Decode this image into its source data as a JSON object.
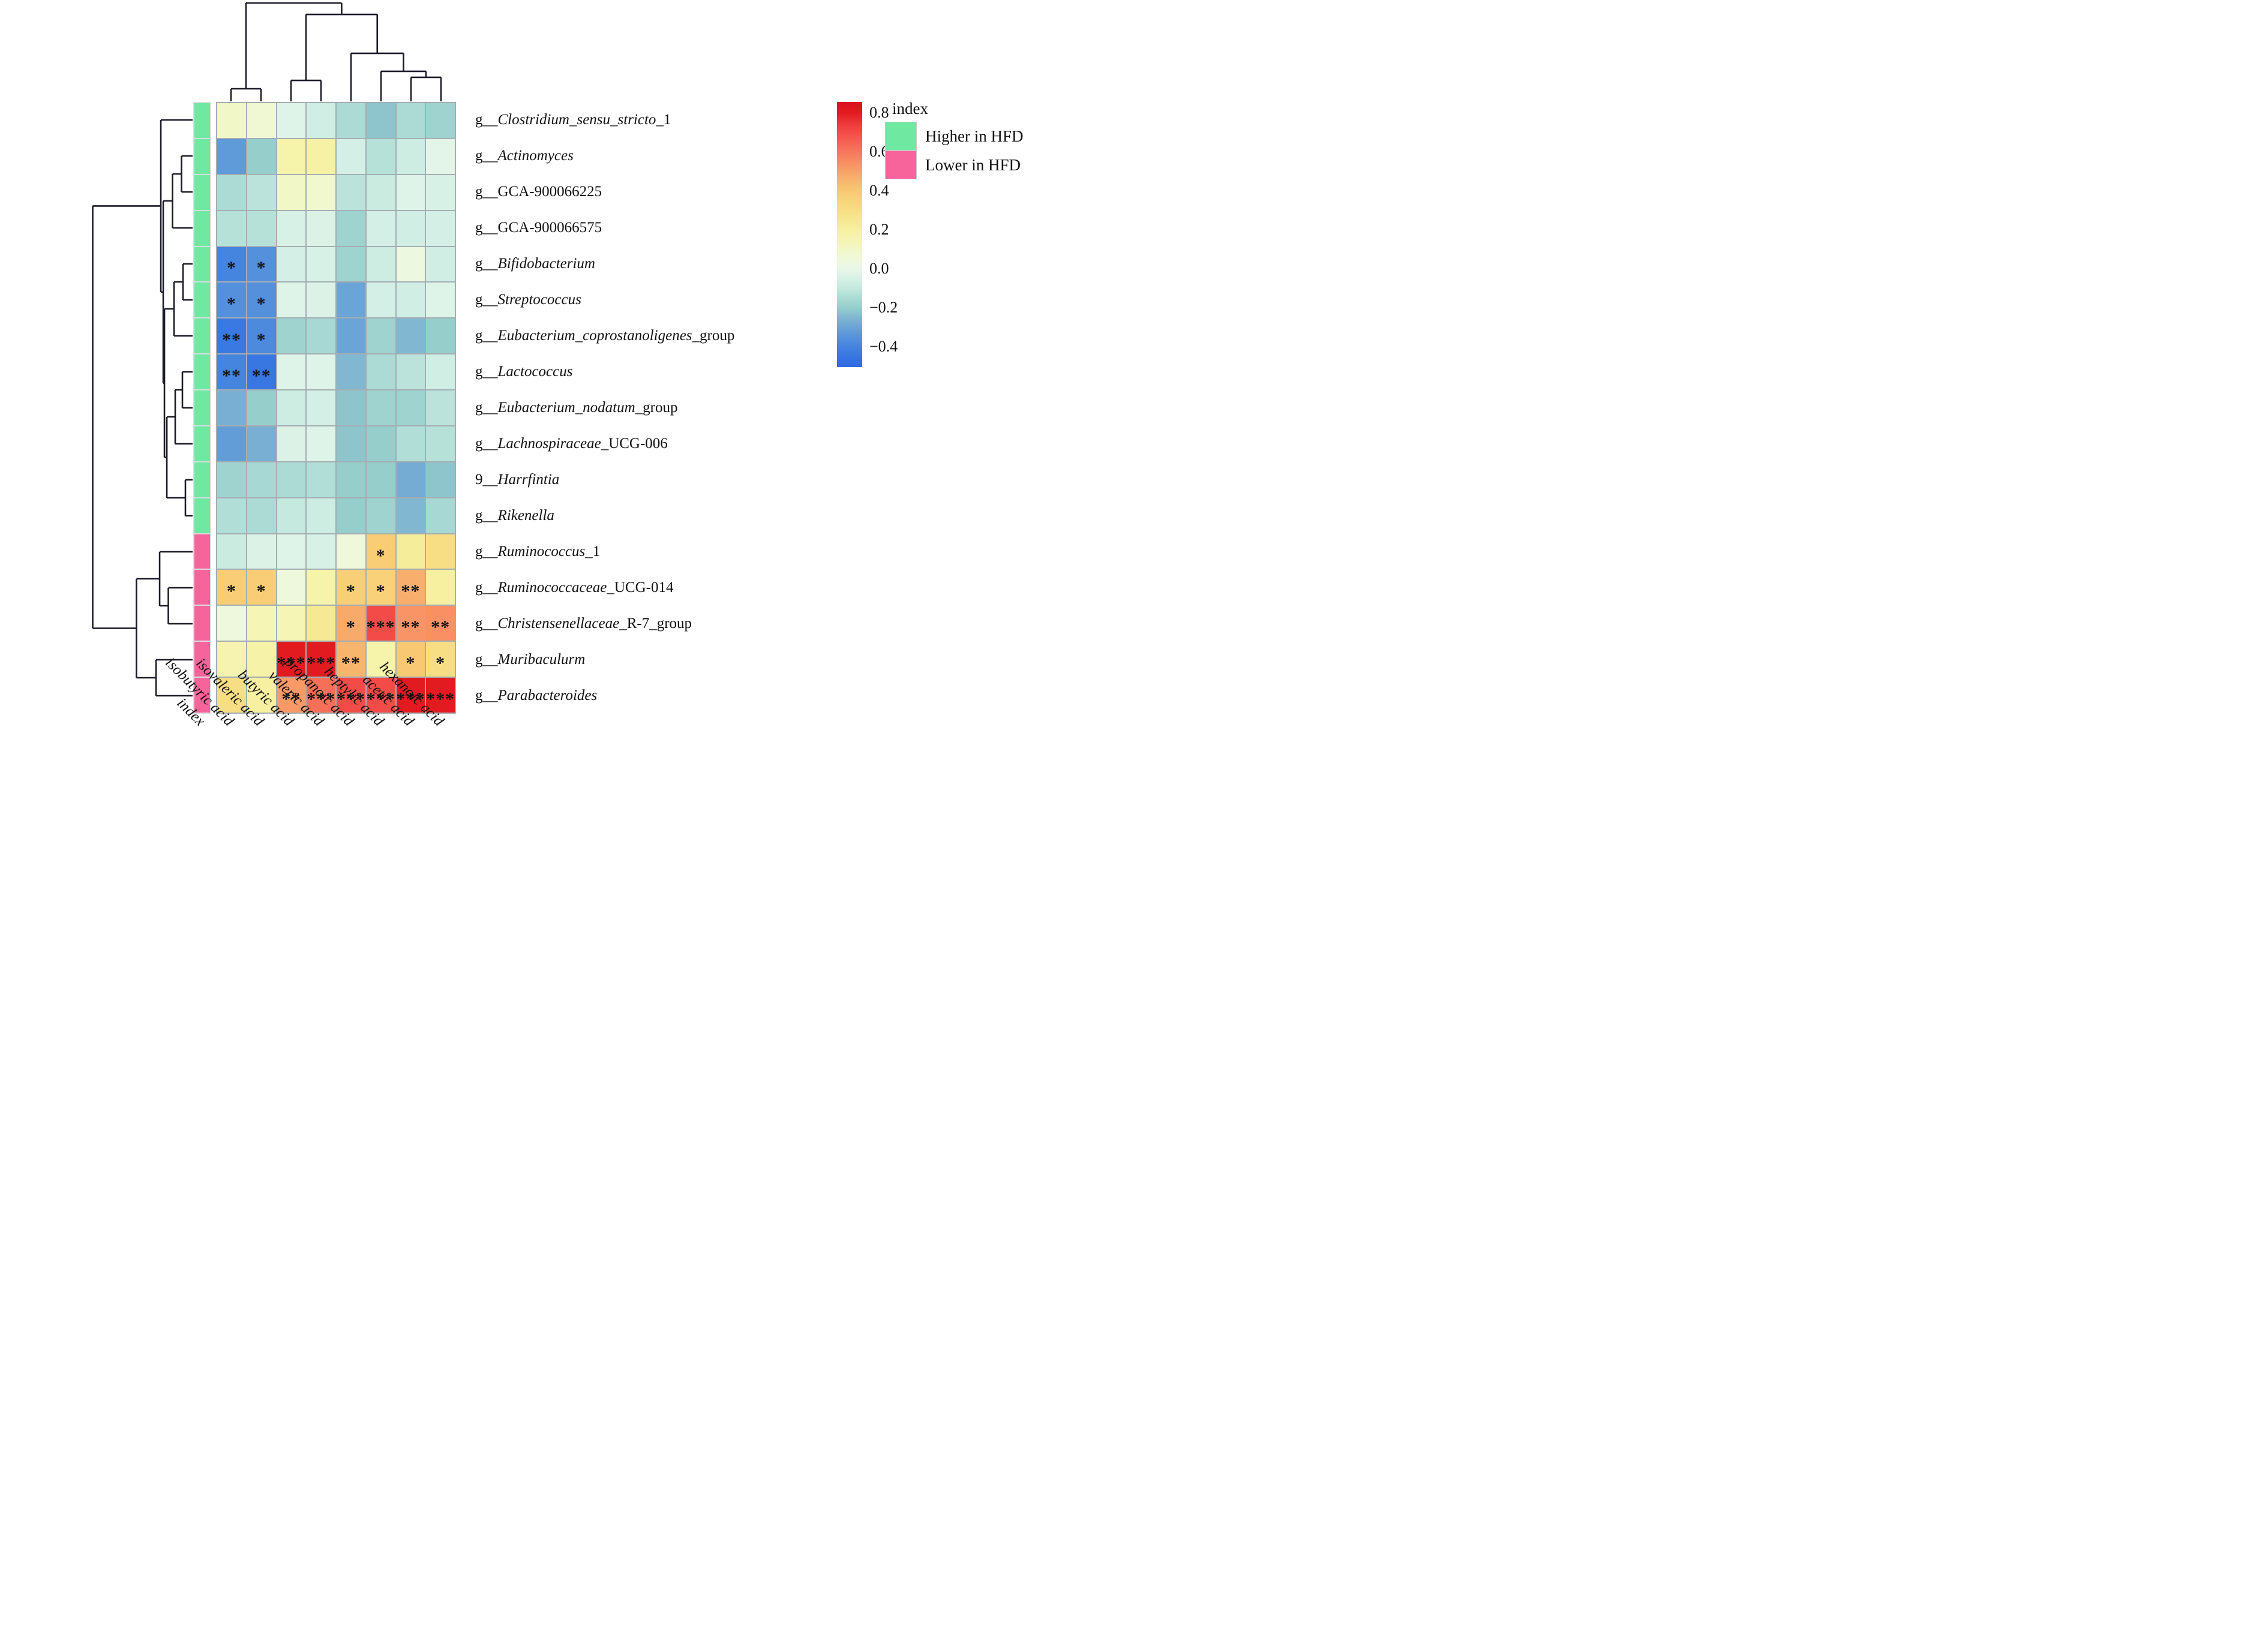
{
  "chart_data": {
    "type": "heatmap",
    "title": "",
    "index_column_label": "index",
    "columns": [
      "isobutyric acid",
      "isovaleric acid",
      "butyric acid",
      "valeric acid",
      "propanoic acid",
      "heptylic acid",
      "acetic acid",
      "hexanoic acid"
    ],
    "rows": [
      {
        "pre": "g__",
        "it": "Clostridium_sensu_stricto",
        "post": "_1",
        "index": "higher"
      },
      {
        "pre": "g__",
        "it": "Actinomyces",
        "post": "",
        "index": "higher"
      },
      {
        "pre": "g__GCA-900066225",
        "it": "",
        "post": "",
        "index": "higher"
      },
      {
        "pre": "g__GCA-900066575",
        "it": "",
        "post": "",
        "index": "higher"
      },
      {
        "pre": "g__",
        "it": "Bifidobacterium",
        "post": "",
        "index": "higher"
      },
      {
        "pre": "g__",
        "it": "Streptococcus",
        "post": "",
        "index": "higher"
      },
      {
        "pre": "g__",
        "it": "Eubacterium_coprostanoligenes",
        "post": "_group",
        "index": "higher"
      },
      {
        "pre": "g__",
        "it": "Lactococcus",
        "post": "",
        "index": "higher"
      },
      {
        "pre": "g__",
        "it": "Eubacterium_nodatum",
        "post": "_group",
        "index": "higher"
      },
      {
        "pre": "g__",
        "it": "Lachnospiraceae",
        "post": "_UCG-006",
        "index": "higher"
      },
      {
        "pre": "9__",
        "it": "Harrfintia",
        "post": "",
        "index": "higher"
      },
      {
        "pre": "g__",
        "it": "Rikenella",
        "post": "",
        "index": "higher"
      },
      {
        "pre": "g__",
        "it": "Ruminococcus",
        "post": "_1",
        "index": "lower"
      },
      {
        "pre": "g__",
        "it": "Ruminococcaceae",
        "post": "_UCG-014",
        "index": "lower"
      },
      {
        "pre": "g__",
        "it": "Christensenellaceae",
        "post": "_R-7_group",
        "index": "lower"
      },
      {
        "pre": "g__",
        "it": "Muribaculurm",
        "post": "",
        "index": "lower"
      },
      {
        "pre": "g__",
        "it": "Parabacteroides",
        "post": "",
        "index": "lower"
      }
    ],
    "values": [
      [
        0.1,
        0.07,
        -0.03,
        -0.07,
        -0.15,
        -0.22,
        -0.15,
        -0.18
      ],
      [
        -0.33,
        -0.2,
        0.17,
        0.19,
        -0.06,
        -0.13,
        -0.08,
        -0.02
      ],
      [
        -0.15,
        -0.12,
        0.1,
        0.08,
        -0.12,
        -0.09,
        -0.03,
        -0.05
      ],
      [
        -0.13,
        -0.13,
        -0.05,
        -0.04,
        -0.18,
        -0.06,
        -0.07,
        -0.06
      ],
      [
        -0.4,
        -0.36,
        -0.06,
        -0.05,
        -0.18,
        -0.08,
        0.03,
        -0.07
      ],
      [
        -0.36,
        -0.36,
        -0.03,
        -0.04,
        -0.3,
        -0.06,
        -0.07,
        -0.03
      ],
      [
        -0.44,
        -0.38,
        -0.18,
        -0.16,
        -0.3,
        -0.18,
        -0.25,
        -0.2
      ],
      [
        -0.4,
        -0.45,
        -0.03,
        -0.03,
        -0.25,
        -0.15,
        -0.12,
        -0.07
      ],
      [
        -0.27,
        -0.2,
        -0.08,
        -0.06,
        -0.22,
        -0.18,
        -0.18,
        -0.12
      ],
      [
        -0.32,
        -0.27,
        -0.04,
        -0.03,
        -0.22,
        -0.2,
        -0.14,
        -0.13
      ],
      [
        -0.18,
        -0.16,
        -0.15,
        -0.14,
        -0.2,
        -0.2,
        -0.28,
        -0.22
      ],
      [
        -0.14,
        -0.15,
        -0.1,
        -0.08,
        -0.2,
        -0.18,
        -0.25,
        -0.16
      ],
      [
        -0.09,
        -0.04,
        -0.03,
        -0.05,
        0.05,
        0.38,
        0.22,
        0.3
      ],
      [
        0.38,
        0.38,
        0.04,
        0.17,
        0.37,
        0.36,
        0.47,
        0.2
      ],
      [
        0.04,
        0.14,
        0.14,
        0.24,
        0.48,
        0.7,
        0.53,
        0.54
      ],
      [
        0.16,
        0.18,
        0.8,
        0.8,
        0.45,
        0.17,
        0.4,
        0.3
      ],
      [
        0.3,
        0.2,
        0.52,
        0.62,
        0.7,
        0.7,
        0.8,
        0.8
      ]
    ],
    "significance": [
      [
        "",
        "",
        "",
        "",
        "",
        "",
        "",
        ""
      ],
      [
        "",
        "",
        "",
        "",
        "",
        "",
        "",
        ""
      ],
      [
        "",
        "",
        "",
        "",
        "",
        "",
        "",
        ""
      ],
      [
        "",
        "",
        "",
        "",
        "",
        "",
        "",
        ""
      ],
      [
        "*",
        "*",
        "",
        "",
        "",
        "",
        "",
        ""
      ],
      [
        "*",
        "*",
        "",
        "",
        "",
        "",
        "",
        ""
      ],
      [
        "**",
        "*",
        "",
        "",
        "",
        "",
        "",
        ""
      ],
      [
        "**",
        "**",
        "",
        "",
        "",
        "",
        "",
        ""
      ],
      [
        "",
        "",
        "",
        "",
        "",
        "",
        "",
        ""
      ],
      [
        "",
        "",
        "",
        "",
        "",
        "",
        "",
        ""
      ],
      [
        "",
        "",
        "",
        "",
        "",
        "",
        "",
        ""
      ],
      [
        "",
        "",
        "",
        "",
        "",
        "",
        "",
        ""
      ],
      [
        "",
        "",
        "",
        "",
        "",
        "*",
        "",
        ""
      ],
      [
        "*",
        "*",
        "",
        "",
        "*",
        "*",
        "**",
        ""
      ],
      [
        "",
        "",
        "",
        "",
        "*",
        "***",
        "**",
        "**"
      ],
      [
        "",
        "",
        "***",
        "***",
        "**",
        "",
        "*",
        "*"
      ],
      [
        "",
        "",
        "**",
        "***",
        "***",
        "***",
        "***",
        "***"
      ]
    ],
    "row_index_colors": {
      "higher": "#6FE9A2",
      "lower": "#F7639B"
    },
    "colormap": {
      "domain": [
        -0.505,
        0.855
      ],
      "stops": [
        [
          -0.5,
          "#2e6be2"
        ],
        [
          -0.42,
          "#3e7ee0"
        ],
        [
          -0.36,
          "#5490dc"
        ],
        [
          -0.3,
          "#6ba4d6"
        ],
        [
          -0.25,
          "#81b7d1"
        ],
        [
          -0.2,
          "#96cecb"
        ],
        [
          -0.15,
          "#acdbd5"
        ],
        [
          -0.1,
          "#c5e9df"
        ],
        [
          -0.05,
          "#d8f1e6"
        ],
        [
          -0.01,
          "#e6f6e9"
        ],
        [
          0.03,
          "#edf8e0"
        ],
        [
          0.08,
          "#f1f8d0"
        ],
        [
          0.14,
          "#f5f5b6"
        ],
        [
          0.2,
          "#f6f0a0"
        ],
        [
          0.27,
          "#f7e48b"
        ],
        [
          0.34,
          "#f8d67b"
        ],
        [
          0.4,
          "#f8c873"
        ],
        [
          0.47,
          "#f8ae6c"
        ],
        [
          0.54,
          "#f89064"
        ],
        [
          0.61,
          "#f6735b"
        ],
        [
          0.68,
          "#f4544e"
        ],
        [
          0.74,
          "#ee3a3c"
        ],
        [
          0.8,
          "#e21b20"
        ],
        [
          0.86,
          "#d90f20"
        ]
      ]
    },
    "colorbar": {
      "tick_labels": [
        "0.8",
        "0.6",
        "0.4",
        "0.2",
        "0.0",
        "−0.2",
        "−0.4"
      ],
      "tick_values": [
        0.8,
        0.6,
        0.4,
        0.2,
        0.0,
        -0.2,
        -0.4
      ]
    },
    "legend": {
      "title": "index",
      "items": [
        {
          "label": "Higher in HFD",
          "color": "#6FE9A2"
        },
        {
          "label": "Lower in HFD",
          "color": "#F7639B"
        }
      ]
    },
    "row_dendrogram": {
      "links": [
        {
          "a": "L1",
          "b": "L2",
          "h": 0.111
        },
        {
          "a": "N0",
          "b": "L3",
          "h": 0.201
        },
        {
          "a": "L4",
          "b": "L5",
          "h": 0.096
        },
        {
          "a": "N2",
          "b": "L6",
          "h": 0.186
        },
        {
          "a": "L7",
          "b": "L8",
          "h": 0.102
        },
        {
          "a": "N4",
          "b": "L9",
          "h": 0.174
        },
        {
          "a": "L10",
          "b": "L11",
          "h": 0.072
        },
        {
          "a": "N5",
          "b": "N6",
          "h": 0.258
        },
        {
          "a": "N3",
          "b": "N7",
          "h": 0.282
        },
        {
          "a": "N1",
          "b": "N8",
          "h": 0.294
        },
        {
          "a": "L0",
          "b": "N9",
          "h": 0.318
        },
        {
          "a": "L13",
          "b": "L14",
          "h": 0.243
        },
        {
          "a": "L12",
          "b": "N11",
          "h": 0.33
        },
        {
          "a": "L15",
          "b": "L16",
          "h": 0.366
        },
        {
          "a": "N12",
          "b": "N13",
          "h": 0.562
        },
        {
          "a": "N10",
          "b": "N14",
          "h": 1.0
        }
      ]
    },
    "column_dendrogram": {
      "links": [
        {
          "a": "L0",
          "b": "L1",
          "h": 0.128
        },
        {
          "a": "L2",
          "b": "L3",
          "h": 0.213
        },
        {
          "a": "L6",
          "b": "L7",
          "h": 0.244
        },
        {
          "a": "L5",
          "b": "N2",
          "h": 0.305
        },
        {
          "a": "L4",
          "b": "N3",
          "h": 0.488
        },
        {
          "a": "N1",
          "b": "N4",
          "h": 0.884
        },
        {
          "a": "N0",
          "b": "N5",
          "h": 1.0
        }
      ]
    }
  }
}
